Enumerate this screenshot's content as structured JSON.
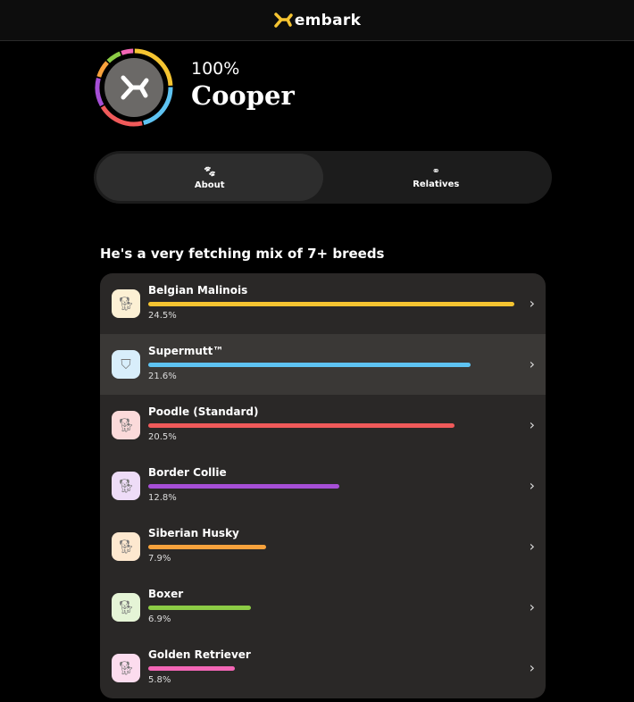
{
  "header": {
    "logo_text": "embark",
    "logo_color": "#f5c431"
  },
  "profile": {
    "percent": "100%",
    "name": "Cooper",
    "avatar_color": "#6b6967"
  },
  "tabs": [
    {
      "label": "About",
      "icon": "paw-icon",
      "active": true
    },
    {
      "label": "Relatives",
      "icon": "rings-icon",
      "active": false
    }
  ],
  "heading": "He's a very fetching mix of 7+ breeds",
  "breeds": [
    {
      "name": "Belgian Malinois",
      "percent": "24.5%",
      "value": 24.5,
      "color": "#f5c431",
      "tile": "#fcf0d4",
      "icon": "dog-icon"
    },
    {
      "name": "Supermutt™",
      "percent": "21.6%",
      "value": 21.6,
      "color": "#5ec3f2",
      "tile": "#d8eefb",
      "icon": "shield-icon"
    },
    {
      "name": "Poodle (Standard)",
      "percent": "20.5%",
      "value": 20.5,
      "color": "#f05a5a",
      "tile": "#fbdada",
      "icon": "dog-icon"
    },
    {
      "name": "Border Collie",
      "percent": "12.8%",
      "value": 12.8,
      "color": "#a64fd6",
      "tile": "#eedcf7",
      "icon": "dog-icon"
    },
    {
      "name": "Siberian Husky",
      "percent": "7.9%",
      "value": 7.9,
      "color": "#f7a23c",
      "tile": "#fde8cf",
      "icon": "dog-icon"
    },
    {
      "name": "Boxer",
      "percent": "6.9%",
      "value": 6.9,
      "color": "#8ccc45",
      "tile": "#e5f4d6",
      "icon": "dog-icon"
    },
    {
      "name": "Golden Retriever",
      "percent": "5.8%",
      "value": 5.8,
      "color": "#f266b5",
      "tile": "#fcdcee",
      "icon": "dog-icon"
    }
  ]
}
